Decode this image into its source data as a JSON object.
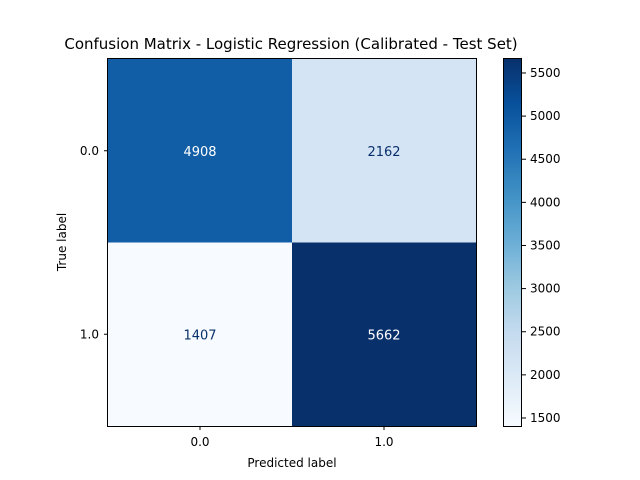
{
  "chart_data": {
    "type": "heatmap",
    "title": "Confusion Matrix - Logistic Regression (Calibrated - Test Set)",
    "xlabel": "Predicted label",
    "ylabel": "True label",
    "x_categories": [
      "0.0",
      "1.0"
    ],
    "y_categories": [
      "0.0",
      "1.0"
    ],
    "values": [
      [
        4908,
        2162
      ],
      [
        1407,
        5662
      ]
    ],
    "value_labels": [
      [
        "4908",
        "2162"
      ],
      [
        "1407",
        "5662"
      ]
    ],
    "colormap": "Blues",
    "color_range": [
      1407,
      5662
    ],
    "colorbar_ticks": [
      1500,
      2000,
      2500,
      3000,
      3500,
      4000,
      4500,
      5000,
      5500
    ],
    "colorbar_tick_labels": [
      "1500",
      "2000",
      "2500",
      "3000",
      "3500",
      "4000",
      "4500",
      "5000",
      "5500"
    ],
    "grid": false
  }
}
